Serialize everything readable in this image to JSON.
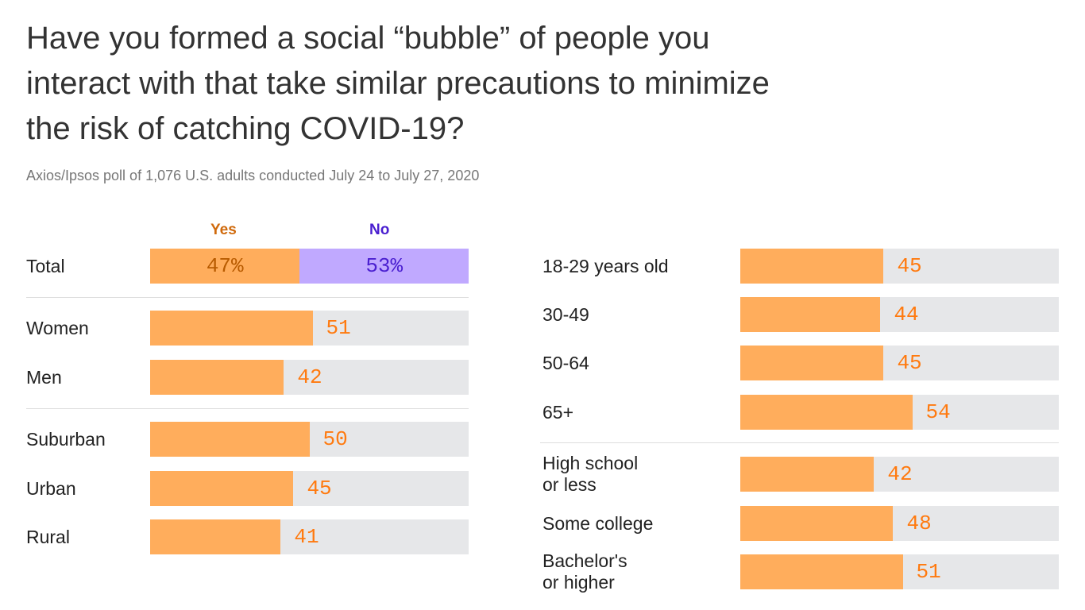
{
  "title": "Have you formed a social “bubble” of people you interact with that take similar precautions to minimize the risk of catching COVID-19?",
  "subtitle": "Axios/Ipsos poll of 1,076 U.S. adults conducted July 24 to July 27, 2020",
  "colors": {
    "yes": "#ffad5c",
    "no": "#c0a9ff",
    "background_bar": "#e6e7e9",
    "value_text": "#ff7a0f",
    "yes_text": "#d06a0c",
    "no_text": "#4a1fd0"
  },
  "chart_data": {
    "type": "bar",
    "orientation": "horizontal",
    "unit": "%",
    "legend": [
      "Yes",
      "No"
    ],
    "total": {
      "label": "Total",
      "yes": 47,
      "no": 53,
      "yes_label": "47%",
      "no_label": "53%"
    },
    "left_groups": [
      [
        {
          "label": "Women",
          "value": 51
        },
        {
          "label": "Men",
          "value": 42
        }
      ],
      [
        {
          "label": "Suburban",
          "value": 50
        },
        {
          "label": "Urban",
          "value": 45
        },
        {
          "label": "Rural",
          "value": 41
        }
      ]
    ],
    "right_groups": [
      [
        {
          "label": "18-29 years old",
          "value": 45
        },
        {
          "label": "30-49",
          "value": 44
        },
        {
          "label": "50-64",
          "value": 45
        },
        {
          "label": "65+",
          "value": 54
        }
      ],
      [
        {
          "label": "High school\nor less",
          "value": 42
        },
        {
          "label": "Some college",
          "value": 48
        },
        {
          "label": "Bachelor's\nor higher",
          "value": 51
        }
      ]
    ],
    "xlim": [
      0,
      100
    ]
  }
}
